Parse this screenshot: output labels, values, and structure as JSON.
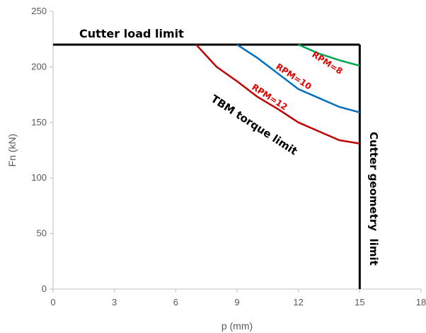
{
  "chart_data": {
    "type": "line",
    "xlabel": "p (mm)",
    "ylabel": "Fn (kN)",
    "xlim": [
      0,
      18
    ],
    "ylim": [
      0,
      250
    ],
    "x_ticks": [
      0,
      3,
      6,
      9,
      12,
      15,
      18
    ],
    "y_ticks": [
      0,
      50,
      100,
      150,
      200,
      250
    ],
    "grid": false,
    "series": [
      {
        "name": "Cutter load limit",
        "color": "#000000",
        "x": [
          0,
          15
        ],
        "y": [
          220,
          220
        ]
      },
      {
        "name": "Cutter geometry limit",
        "color": "#000000",
        "x": [
          15,
          15
        ],
        "y": [
          220,
          0
        ]
      },
      {
        "name": "RPM=8",
        "color": "#00a550",
        "x": [
          12,
          13,
          14,
          15
        ],
        "y": [
          220,
          212,
          206,
          201
        ]
      },
      {
        "name": "RPM=10",
        "color": "#0070c0",
        "x": [
          9,
          10,
          11,
          12,
          13,
          14,
          15
        ],
        "y": [
          220,
          208,
          194,
          180,
          172,
          164,
          159
        ]
      },
      {
        "name": "RPM=12",
        "color": "#c00000",
        "x": [
          7,
          8,
          9,
          10,
          11,
          12,
          13,
          14,
          15
        ],
        "y": [
          220,
          200,
          187,
          173,
          162,
          150,
          142,
          134,
          131
        ]
      }
    ],
    "annotations": [
      {
        "text": "Cutter load limit",
        "color": "#000000"
      },
      {
        "text": "TBM torque limit",
        "color": "#000000"
      },
      {
        "text": "Cutter geometry  limit",
        "color": "#000000"
      },
      {
        "text": "RPM=8",
        "color": "#e00000"
      },
      {
        "text": "RPM=10",
        "color": "#e00000"
      },
      {
        "text": "RPM=12",
        "color": "#e00000"
      }
    ]
  }
}
